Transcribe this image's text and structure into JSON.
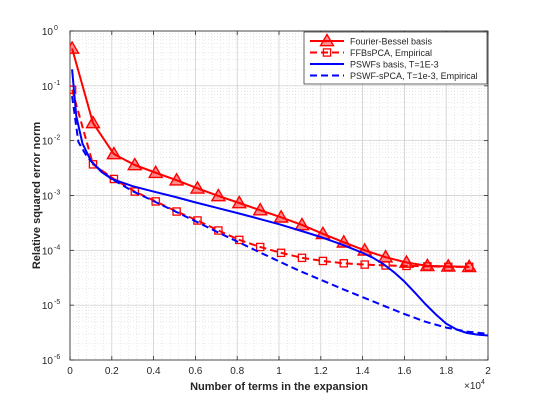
{
  "chart_data": {
    "type": "line",
    "title": "",
    "xlabel": "Number of terms in the expansion",
    "ylabel": "Relative squared error norm",
    "x_exponent_label": "×10",
    "x_exponent_power": "4",
    "xlim": [
      0,
      20000
    ],
    "ylim": [
      1e-06,
      1
    ],
    "yscale": "log",
    "grid": true,
    "legend_position": "top-right",
    "x_ticks": [
      0,
      2000,
      4000,
      6000,
      8000,
      10000,
      12000,
      14000,
      16000,
      18000,
      20000
    ],
    "x_tick_labels": [
      "0",
      "0.2",
      "0.4",
      "0.6",
      "0.8",
      "1",
      "1.2",
      "1.4",
      "1.6",
      "1.8",
      "2"
    ],
    "y_ticks": [
      1e-06,
      1e-05,
      0.0001,
      0.001,
      0.01,
      0.1,
      1
    ],
    "y_tick_labels": [
      {
        "base": "10",
        "exp": "-6"
      },
      {
        "base": "10",
        "exp": "-5"
      },
      {
        "base": "10",
        "exp": "-4"
      },
      {
        "base": "10",
        "exp": "-3"
      },
      {
        "base": "10",
        "exp": "-2"
      },
      {
        "base": "10",
        "exp": "-1"
      },
      {
        "base": "10",
        "exp": "0"
      }
    ],
    "series": [
      {
        "name": "Fourier-Bessel basis",
        "color": "#ff0000",
        "style": "solid",
        "marker": "triangle",
        "x": [
          100,
          1100,
          2100,
          3100,
          4100,
          5100,
          6100,
          7100,
          8100,
          9100,
          10100,
          11100,
          12100,
          13100,
          14100,
          15100,
          16100,
          17100,
          18100,
          19100
        ],
        "y": [
          0.48,
          0.021,
          0.0057,
          0.0036,
          0.0026,
          0.0019,
          0.00135,
          0.00098,
          0.00073,
          0.00054,
          0.0004,
          0.00029,
          0.0002,
          0.00014,
          0.0001,
          7.5e-05,
          6e-05,
          5.2e-05,
          5.1e-05,
          5e-05
        ]
      },
      {
        "name": "FFBsPCA, Empirical",
        "color": "#ff0000",
        "style": "dashed",
        "marker": "square",
        "x": [
          100,
          1100,
          2100,
          3100,
          4100,
          5100,
          6100,
          7100,
          8100,
          9100,
          10100,
          11100,
          12100,
          13100,
          14100,
          15100,
          16100,
          17100,
          18100,
          19100
        ],
        "y": [
          0.085,
          0.0037,
          0.002,
          0.00118,
          0.00078,
          0.00051,
          0.00035,
          0.00023,
          0.000155,
          0.000115,
          9e-05,
          7.3e-05,
          6.4e-05,
          5.8e-05,
          5.5e-05,
          5.3e-05,
          5.2e-05,
          5.1e-05,
          5e-05,
          5e-05
        ]
      },
      {
        "name": "PSWFs basis, T=1E-3",
        "color": "#0000ff",
        "style": "solid",
        "marker": "none",
        "x": [
          100,
          300,
          600,
          1000,
          1500,
          2000,
          3000,
          4000,
          5000,
          6000,
          7000,
          8000,
          9000,
          10000,
          11000,
          12000,
          13000,
          14000,
          14500,
          15000,
          15500,
          16000,
          16500,
          17000,
          17500,
          18000,
          18500,
          19000,
          19500,
          20000
        ],
        "y": [
          0.2,
          0.028,
          0.0088,
          0.0043,
          0.0027,
          0.002,
          0.00148,
          0.00118,
          0.00095,
          0.00075,
          0.0006,
          0.00048,
          0.00038,
          0.0003,
          0.00023,
          0.000175,
          0.000128,
          9e-05,
          7.3e-05,
          5.6e-05,
          4e-05,
          2.7e-05,
          1.7e-05,
          1.05e-05,
          6.8e-06,
          4.6e-06,
          3.6e-06,
          3.1e-06,
          2.9e-06,
          2.8e-06
        ]
      },
      {
        "name": "PSWF-sPCA, T=1e-3, Empirical",
        "color": "#0000ff",
        "style": "dashed",
        "marker": "none",
        "x": [
          100,
          400,
          800,
          1200,
          2000,
          3000,
          4000,
          5000,
          6000,
          7000,
          8000,
          9000,
          10000,
          11000,
          12000,
          13000,
          14000,
          15000,
          16000,
          17000,
          18000,
          19000,
          20000
        ],
        "y": [
          0.065,
          0.0095,
          0.0052,
          0.0035,
          0.002,
          0.0012,
          0.00079,
          0.00052,
          0.00034,
          0.00022,
          0.000145,
          9.5e-05,
          6.3e-05,
          4.2e-05,
          2.9e-05,
          2e-05,
          1.4e-05,
          9.8e-06,
          6.9e-06,
          5e-06,
          3.9e-06,
          3.3e-06,
          3e-06
        ]
      }
    ]
  }
}
